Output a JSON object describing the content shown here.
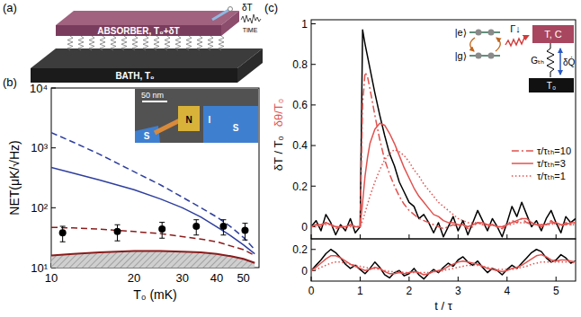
{
  "panel_labels": [
    "(a)",
    "(b)",
    "(c)"
  ],
  "diagram": {
    "absorber_label": "ABSORBER, T₀+δT",
    "bath_label": "BATH, T₀",
    "signal_label": "δT",
    "time_label": "TIME"
  },
  "inset_b": {
    "scale_bar": "50 nm",
    "labels": [
      "S",
      "N",
      "I",
      "S"
    ]
  },
  "inset_c": {
    "excited": "|e⟩",
    "ground": "|g⟩",
    "rate": "Γ↓",
    "absorber": "T, C",
    "conductance": "Gₜₕ",
    "heat": "δQ̇",
    "bath": "T₀"
  },
  "chart_data": [
    {
      "type": "line",
      "log": true,
      "xlabel": "T₀ (mK)",
      "ylabel": "NET(μK/√Hz)",
      "xlim": [
        10,
        57
      ],
      "ylim": [
        10,
        10000
      ],
      "xticks": [
        10,
        20,
        30,
        40,
        50
      ],
      "yticks": [
        {
          "value": 10,
          "label": "10¹"
        },
        {
          "value": 100,
          "label": "10²"
        },
        {
          "value": 1000,
          "label": "10³"
        },
        {
          "value": 10000,
          "label": "10⁴"
        }
      ],
      "series": [
        {
          "color": "#2e3f9e",
          "line_style": "dashed",
          "x": [
            10,
            12,
            15,
            20,
            25,
            30,
            35,
            40,
            45,
            50,
            55
          ],
          "values": [
            1800,
            1250,
            780,
            400,
            240,
            150,
            100,
            70,
            48,
            32,
            20
          ]
        },
        {
          "color": "#2e3f9e",
          "line_style": "solid",
          "x": [
            10,
            12,
            15,
            20,
            25,
            30,
            35,
            40,
            45,
            50,
            55
          ],
          "values": [
            470,
            380,
            290,
            200,
            140,
            100,
            70,
            48,
            34,
            24,
            17
          ]
        },
        {
          "color": "#8b1c1c",
          "line_style": "dashed",
          "x": [
            10,
            12,
            15,
            20,
            25,
            30,
            35,
            40,
            45,
            50,
            55
          ],
          "values": [
            47,
            46,
            44,
            40,
            37,
            33,
            30,
            27,
            23,
            20,
            16
          ]
        },
        {
          "color": "#8b1c1c",
          "line_style": "solid",
          "type": "area",
          "x": [
            10,
            12,
            15,
            20,
            25,
            30,
            35,
            40,
            45,
            50,
            55
          ],
          "values": [
            16,
            17,
            18,
            19,
            19,
            18.5,
            18,
            17,
            15.5,
            14,
            12
          ]
        },
        {
          "color": "#000000",
          "type": "scatter",
          "marker": "circle",
          "x": [
            11,
            17.4,
            25.3,
            33.7,
            42.3,
            50.7
          ],
          "values": [
            38,
            40,
            44,
            49,
            49,
            42
          ],
          "errors": [
            11,
            12,
            13,
            14,
            14,
            13
          ]
        }
      ]
    },
    {
      "type": "line",
      "ylabel": "δT / T₀",
      "model_label": "δθ/T₀",
      "tick_labels": "y",
      "legend": "right",
      "xlim": [
        0,
        5.4
      ],
      "ylim": [
        -0.06,
        1.02
      ],
      "xticks": [
        0,
        1,
        2,
        3,
        4,
        5
      ],
      "yticks": [
        0,
        0.2,
        0.4,
        0.6,
        0.8,
        1
      ],
      "x": [
        0,
        0.1,
        0.2,
        0.3,
        0.4,
        0.5,
        0.6,
        0.7,
        0.8,
        0.9,
        1.0,
        1.05,
        1.1,
        1.15,
        1.2,
        1.3,
        1.4,
        1.5,
        1.6,
        1.7,
        1.8,
        1.9,
        2.0,
        2.1,
        2.2,
        2.3,
        2.4,
        2.5,
        2.6,
        2.7,
        2.8,
        2.9,
        3.0,
        3.1,
        3.2,
        3.3,
        3.4,
        3.5,
        3.6,
        3.7,
        3.8,
        3.9,
        4.0,
        4.1,
        4.2,
        4.3,
        4.4,
        4.5,
        4.6,
        4.7,
        4.8,
        4.9,
        5.0,
        5.1,
        5.2,
        5.3,
        5.4
      ],
      "series": [
        {
          "color": "#000000",
          "line_style": "solid",
          "values": [
            0.0,
            0.03,
            -0.02,
            0.06,
            0.02,
            -0.04,
            0.01,
            -0.02,
            0.04,
            -0.03,
            0.0,
            0.97,
            0.9,
            0.84,
            0.78,
            0.66,
            0.55,
            0.45,
            0.36,
            0.3,
            0.22,
            0.17,
            0.12,
            0.1,
            0.04,
            0.06,
            0.02,
            -0.03,
            0.02,
            -0.05,
            0.0,
            0.05,
            -0.02,
            0.03,
            -0.04,
            0.02,
            0.08,
            0.03,
            -0.02,
            0.04,
            0.0,
            -0.05,
            0.02,
            0.1,
            0.05,
            0.12,
            0.06,
            0.0,
            0.03,
            -0.02,
            0.04,
            0.08,
            0.02,
            -0.03,
            0.05,
            0.02,
            0.04
          ]
        },
        {
          "name": "τ/τₜₕ=10",
          "color": "#e0524f",
          "line_style": "dashdot",
          "values": [
            0.0,
            0.01,
            0.0,
            0.02,
            0.01,
            -0.01,
            0.0,
            -0.01,
            0.01,
            0.0,
            0.0,
            0.6,
            0.76,
            0.74,
            0.68,
            0.55,
            0.43,
            0.33,
            0.26,
            0.2,
            0.15,
            0.11,
            0.08,
            0.06,
            0.04,
            0.03,
            0.02,
            0.01,
            0.0,
            -0.01,
            0.0,
            0.01,
            0.0,
            0.01,
            -0.01,
            0.0,
            0.02,
            0.01,
            0.0,
            0.01,
            0.0,
            -0.01,
            0.01,
            0.03,
            0.02,
            0.04,
            0.02,
            0.01,
            0.01,
            0.0,
            0.01,
            0.03,
            0.01,
            0.0,
            0.02,
            0.01,
            0.02
          ]
        },
        {
          "name": "τ/τₜₕ=3",
          "color": "#e0524f",
          "line_style": "solid",
          "values": [
            0.0,
            0.01,
            0.01,
            0.02,
            0.01,
            0.0,
            0.0,
            0.0,
            0.01,
            0.0,
            0.0,
            0.12,
            0.25,
            0.34,
            0.41,
            0.48,
            0.51,
            0.5,
            0.46,
            0.41,
            0.35,
            0.29,
            0.24,
            0.19,
            0.15,
            0.12,
            0.09,
            0.06,
            0.05,
            0.03,
            0.02,
            0.02,
            0.01,
            0.01,
            0.0,
            0.01,
            0.02,
            0.02,
            0.01,
            0.01,
            0.0,
            0.0,
            0.01,
            0.02,
            0.03,
            0.04,
            0.04,
            0.02,
            0.01,
            0.01,
            0.01,
            0.02,
            0.02,
            0.01,
            0.01,
            0.02,
            0.02
          ]
        },
        {
          "name": "τ/τₜₕ=1",
          "color": "#e0524f",
          "line_style": "dotted",
          "values": [
            0.0,
            0.0,
            0.01,
            0.01,
            0.01,
            0.0,
            0.0,
            0.0,
            0.0,
            0.0,
            0.0,
            0.03,
            0.07,
            0.11,
            0.15,
            0.22,
            0.28,
            0.33,
            0.36,
            0.38,
            0.37,
            0.35,
            0.32,
            0.28,
            0.25,
            0.21,
            0.18,
            0.15,
            0.12,
            0.1,
            0.08,
            0.06,
            0.04,
            0.03,
            0.02,
            0.02,
            0.02,
            0.01,
            0.01,
            0.01,
            0.0,
            0.0,
            0.01,
            0.01,
            0.02,
            0.02,
            0.02,
            0.02,
            0.01,
            0.01,
            0.01,
            0.01,
            0.02,
            0.01,
            0.01,
            0.01,
            0.01
          ]
        }
      ]
    },
    {
      "type": "line",
      "xlabel": "t / τ",
      "xlim": [
        0,
        5.4
      ],
      "ylim": [
        -0.1,
        0.3
      ],
      "xticks": [
        0,
        1,
        2,
        3,
        4,
        5
      ],
      "yticks": [
        0,
        0.2
      ],
      "x": [
        0,
        0.1,
        0.2,
        0.3,
        0.4,
        0.5,
        0.6,
        0.7,
        0.8,
        0.9,
        1.0,
        1.1,
        1.2,
        1.3,
        1.4,
        1.5,
        1.6,
        1.7,
        1.8,
        1.9,
        2.0,
        2.1,
        2.2,
        2.3,
        2.4,
        2.5,
        2.6,
        2.7,
        2.8,
        2.9,
        3.0,
        3.1,
        3.2,
        3.3,
        3.4,
        3.5,
        3.6,
        3.7,
        3.8,
        3.9,
        4.0,
        4.1,
        4.2,
        4.3,
        4.4,
        4.5,
        4.6,
        4.7,
        4.8,
        4.9,
        5.0,
        5.1,
        5.2,
        5.3,
        5.4
      ],
      "series": [
        {
          "color": "#000000",
          "line_style": "solid",
          "values": [
            0.0,
            0.05,
            0.1,
            0.16,
            0.2,
            0.17,
            0.12,
            0.06,
            0.02,
            0.05,
            0.01,
            -0.03,
            0.02,
            0.08,
            0.03,
            -0.04,
            -0.07,
            -0.02,
            0.0,
            -0.05,
            -0.03,
            0.02,
            -0.04,
            -0.08,
            -0.03,
            0.01,
            -0.02,
            0.03,
            0.07,
            0.04,
            0.1,
            0.13,
            0.08,
            0.05,
            0.09,
            0.03,
            -0.02,
            0.02,
            0.0,
            -0.04,
            0.01,
            0.05,
            0.02,
            0.07,
            0.12,
            0.17,
            0.2,
            0.18,
            0.12,
            0.08,
            0.1,
            0.15,
            0.12,
            0.07,
            0.09
          ]
        },
        {
          "color": "#e0524f",
          "line_style": "solid",
          "values": [
            0.0,
            0.03,
            0.07,
            0.11,
            0.14,
            0.14,
            0.12,
            0.09,
            0.06,
            0.04,
            0.02,
            0.0,
            0.01,
            0.03,
            0.02,
            -0.01,
            -0.03,
            -0.03,
            -0.02,
            -0.03,
            -0.02,
            -0.01,
            -0.02,
            -0.04,
            -0.03,
            -0.01,
            0.0,
            0.01,
            0.04,
            0.06,
            0.08,
            0.09,
            0.08,
            0.07,
            0.06,
            0.04,
            0.02,
            0.01,
            0.0,
            -0.01,
            0.0,
            0.02,
            0.03,
            0.05,
            0.08,
            0.11,
            0.14,
            0.15,
            0.13,
            0.1,
            0.09,
            0.1,
            0.1,
            0.09,
            0.08
          ]
        },
        {
          "color": "#e0524f",
          "line_style": "dotted",
          "values": [
            0.0,
            0.01,
            0.03,
            0.05,
            0.07,
            0.08,
            0.08,
            0.07,
            0.06,
            0.05,
            0.04,
            0.03,
            0.02,
            0.02,
            0.01,
            0.0,
            -0.01,
            -0.01,
            -0.01,
            -0.02,
            -0.02,
            -0.02,
            -0.02,
            -0.02,
            -0.02,
            -0.01,
            -0.01,
            0.0,
            0.01,
            0.02,
            0.03,
            0.04,
            0.05,
            0.05,
            0.05,
            0.04,
            0.03,
            0.02,
            0.01,
            0.01,
            0.01,
            0.01,
            0.02,
            0.03,
            0.04,
            0.06,
            0.07,
            0.08,
            0.08,
            0.08,
            0.08,
            0.08,
            0.08,
            0.08,
            0.07
          ]
        }
      ]
    }
  ]
}
